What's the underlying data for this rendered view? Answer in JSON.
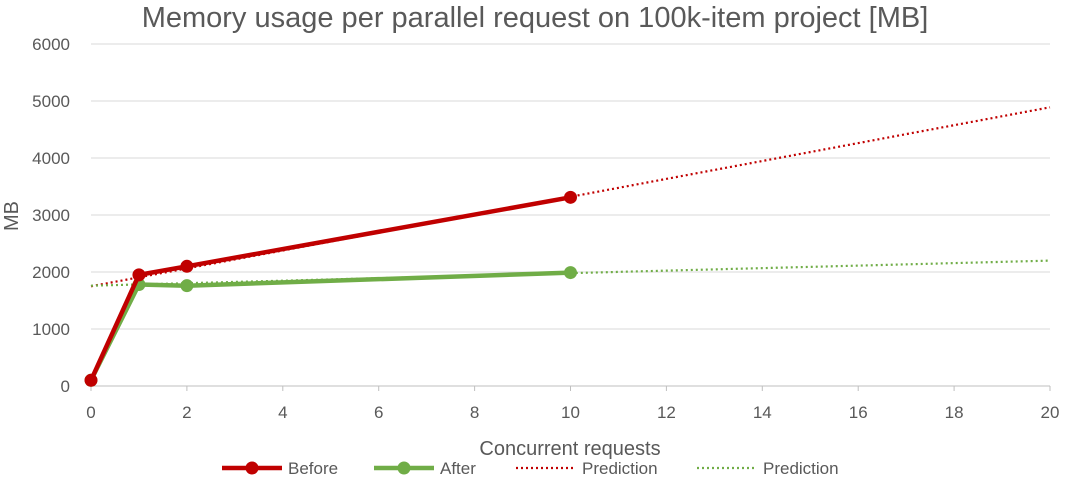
{
  "chart_data": {
    "type": "line",
    "title": "Memory usage per parallel request on 100k-item project [MB]",
    "xlabel": "Concurrent requests",
    "ylabel": "MB",
    "xlim": [
      0,
      20
    ],
    "ylim": [
      0,
      6000
    ],
    "xticks": [
      0,
      2,
      4,
      6,
      8,
      10,
      12,
      14,
      16,
      18,
      20
    ],
    "yticks": [
      0,
      1000,
      2000,
      3000,
      4000,
      5000,
      6000
    ],
    "grid": "horizontal",
    "legend_position": "bottom",
    "series": [
      {
        "name": "Before",
        "color": "#c00000",
        "style": "solid-markers",
        "x": [
          0,
          1,
          2,
          10
        ],
        "y": [
          100,
          1950,
          2100,
          3310
        ]
      },
      {
        "name": "After",
        "color": "#70ad47",
        "style": "solid-markers",
        "x": [
          0,
          1,
          2,
          10
        ],
        "y": [
          100,
          1780,
          1760,
          1990
        ]
      },
      {
        "name": "Prediction",
        "color": "#c00000",
        "style": "dotted",
        "x": [
          0,
          20
        ],
        "y": [
          1750,
          4890
        ]
      },
      {
        "name": "Prediction",
        "color": "#70ad47",
        "style": "dotted",
        "x": [
          0,
          20
        ],
        "y": [
          1760,
          2200
        ]
      }
    ]
  }
}
